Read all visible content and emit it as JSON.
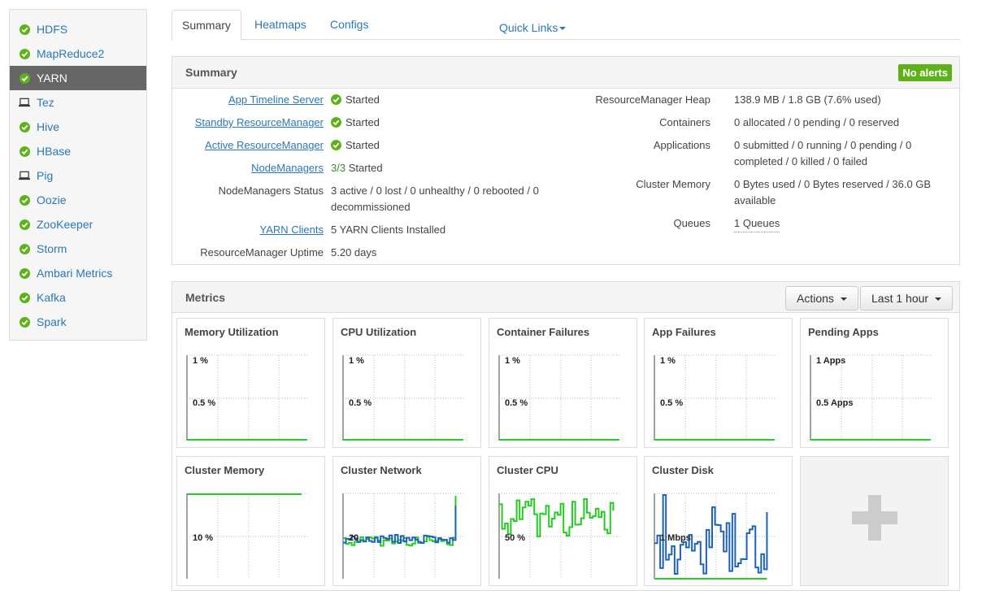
{
  "sidebar": {
    "items": [
      {
        "label": "HDFS",
        "status": "ok"
      },
      {
        "label": "MapReduce2",
        "status": "ok"
      },
      {
        "label": "YARN",
        "status": "ok",
        "active": true
      },
      {
        "label": "Tez",
        "status": "client"
      },
      {
        "label": "Hive",
        "status": "ok"
      },
      {
        "label": "HBase",
        "status": "ok"
      },
      {
        "label": "Pig",
        "status": "client"
      },
      {
        "label": "Oozie",
        "status": "ok"
      },
      {
        "label": "ZooKeeper",
        "status": "ok"
      },
      {
        "label": "Storm",
        "status": "ok"
      },
      {
        "label": "Ambari Metrics",
        "status": "ok"
      },
      {
        "label": "Kafka",
        "status": "ok"
      },
      {
        "label": "Spark",
        "status": "ok"
      }
    ]
  },
  "tabs": {
    "summary": "Summary",
    "heatmaps": "Heatmaps",
    "configs": "Configs",
    "quick_links": "Quick Links"
  },
  "summary": {
    "title": "Summary",
    "alert_badge": "No alerts",
    "left": {
      "app_timeline_server": {
        "label": "App Timeline Server",
        "value": "Started"
      },
      "standby_rm": {
        "label": "Standby ResourceManager",
        "value": "Started"
      },
      "active_rm": {
        "label": "Active ResourceManager",
        "value": "Started"
      },
      "nodemanagers": {
        "label": "NodeManagers",
        "count": "3/3",
        "value": "Started"
      },
      "nm_status": {
        "label": "NodeManagers Status",
        "line1": "3 active / 0 lost / 0 unhealthy / 0 rebooted / 0",
        "line2": "decommissioned"
      },
      "yarn_clients": {
        "label": "YARN Clients",
        "value": "5 YARN Clients Installed"
      },
      "rm_uptime": {
        "label": "ResourceManager Uptime",
        "value": "5.20 days"
      }
    },
    "right": {
      "rm_heap": {
        "label": "ResourceManager Heap",
        "value": "138.9 MB / 1.8 GB (7.6% used)"
      },
      "containers": {
        "label": "Containers",
        "value": "0 allocated / 0 pending / 0 reserved"
      },
      "applications": {
        "label": "Applications",
        "line1": "0 submitted / 0 running / 0 pending / 0",
        "line2": "completed / 0 killed / 0 failed"
      },
      "cluster_memory": {
        "label": "Cluster Memory",
        "line1": "0 Bytes used / 0 Bytes reserved / 36.0 GB",
        "line2": "available"
      },
      "queues": {
        "label": "Queues",
        "value": "1 Queues"
      }
    }
  },
  "metrics": {
    "title": "Metrics",
    "actions_label": "Actions",
    "time_label": "Last 1 hour",
    "widgets": {
      "memory_util": {
        "title": "Memory Utilization",
        "top": "1 %",
        "mid": "0.5 %"
      },
      "cpu_util": {
        "title": "CPU Utilization",
        "top": "1 %",
        "mid": "0.5 %"
      },
      "container_failures": {
        "title": "Container Failures",
        "top": "1 %",
        "mid": "0.5 %"
      },
      "app_failures": {
        "title": "App Failures",
        "top": "1 %",
        "mid": "0.5 %"
      },
      "pending_apps": {
        "title": "Pending Apps",
        "top": "1 Apps",
        "mid": "0.5 Apps"
      },
      "cluster_memory": {
        "title": "Cluster Memory",
        "mid": "10 %"
      },
      "cluster_network": {
        "title": "Cluster Network",
        "mid": "20"
      },
      "cluster_cpu": {
        "title": "Cluster CPU",
        "mid": "50 %"
      },
      "cluster_disk": {
        "title": "Cluster Disk",
        "mid": "1 Mbps"
      }
    }
  },
  "colors": {
    "ok": "#5eb219",
    "link": "#2a78b5",
    "series_green": "#22cc22",
    "series_blue": "#1f63b8"
  },
  "icons": {
    "ok": "check-circle-icon",
    "client": "laptop-icon",
    "add": "plus-icon"
  }
}
